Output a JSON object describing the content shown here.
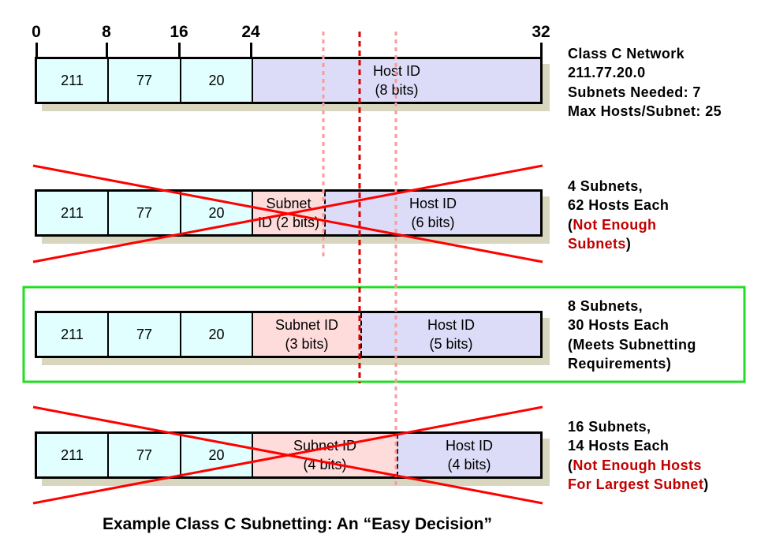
{
  "bit_positions": [
    "0",
    "8",
    "16",
    "24",
    "32"
  ],
  "rows": [
    {
      "id": "original",
      "octets": [
        "211",
        "77",
        "20"
      ],
      "subnet_lines": [],
      "host_lines": [
        "Host ID",
        "(8 bits)"
      ],
      "description": [
        {
          "text": "Class C Network",
          "color": "black"
        },
        {
          "text": "211.77.20.0",
          "color": "black"
        },
        {
          "text": "Subnets Needed: 7",
          "color": "black"
        },
        {
          "text": "Max Hosts/Subnet: 25",
          "color": "black"
        }
      ],
      "status": "reference"
    },
    {
      "id": "two-bit",
      "octets": [
        "211",
        "77",
        "20"
      ],
      "subnet_lines": [
        "Subnet",
        "ID (2 bits)"
      ],
      "host_lines": [
        "Host ID",
        "(6 bits)"
      ],
      "description": [
        [
          {
            "text": "4 Subnets,",
            "red": false
          }
        ],
        [
          {
            "text": "62 Hosts Each",
            "red": false
          }
        ],
        [
          {
            "text": "(",
            "red": false
          },
          {
            "text": "Not Enough",
            "red": true
          }
        ],
        [
          {
            "text": "Subnets",
            "red": true
          },
          {
            "text": ")",
            "red": false
          }
        ]
      ],
      "status": "rejected"
    },
    {
      "id": "three-bit",
      "octets": [
        "211",
        "77",
        "20"
      ],
      "subnet_lines": [
        "Subnet ID",
        "(3 bits)"
      ],
      "host_lines": [
        "Host ID",
        "(5 bits)"
      ],
      "description": [
        [
          {
            "text": "8 Subnets,",
            "red": false
          }
        ],
        [
          {
            "text": "30 Hosts Each",
            "red": false
          }
        ],
        [
          {
            "text": "(Meets Subnetting",
            "red": false
          }
        ],
        [
          {
            "text": "Requirements)",
            "red": false
          }
        ]
      ],
      "status": "selected"
    },
    {
      "id": "four-bit",
      "octets": [
        "211",
        "77",
        "20"
      ],
      "subnet_lines": [
        "Subnet ID",
        "(4 bits)"
      ],
      "host_lines": [
        "Host ID",
        "(4 bits)"
      ],
      "description": [
        [
          {
            "text": "16 Subnets,",
            "red": false
          }
        ],
        [
          {
            "text": "14 Hosts Each",
            "red": false
          }
        ],
        [
          {
            "text": "(",
            "red": false
          },
          {
            "text": "Not Enough Hosts",
            "red": true
          }
        ],
        [
          {
            "text": "For Largest Subnet",
            "red": true
          },
          {
            "text": ")",
            "red": false
          }
        ]
      ],
      "status": "rejected"
    }
  ],
  "caption": "Example Class C Subnetting: An “Easy Decision”",
  "colors": {
    "network_cell": "#e1ffff",
    "subnet_cell": "#ffdcdc",
    "host_cell": "#dcdcf8",
    "shadow": "#d9d6bf",
    "highlight_box": "#22dd22",
    "cross_line": "#ff0000",
    "guide_dotted": "#ff9999",
    "guide_main": "#dd0000",
    "emphasis_text": "#c00000"
  }
}
